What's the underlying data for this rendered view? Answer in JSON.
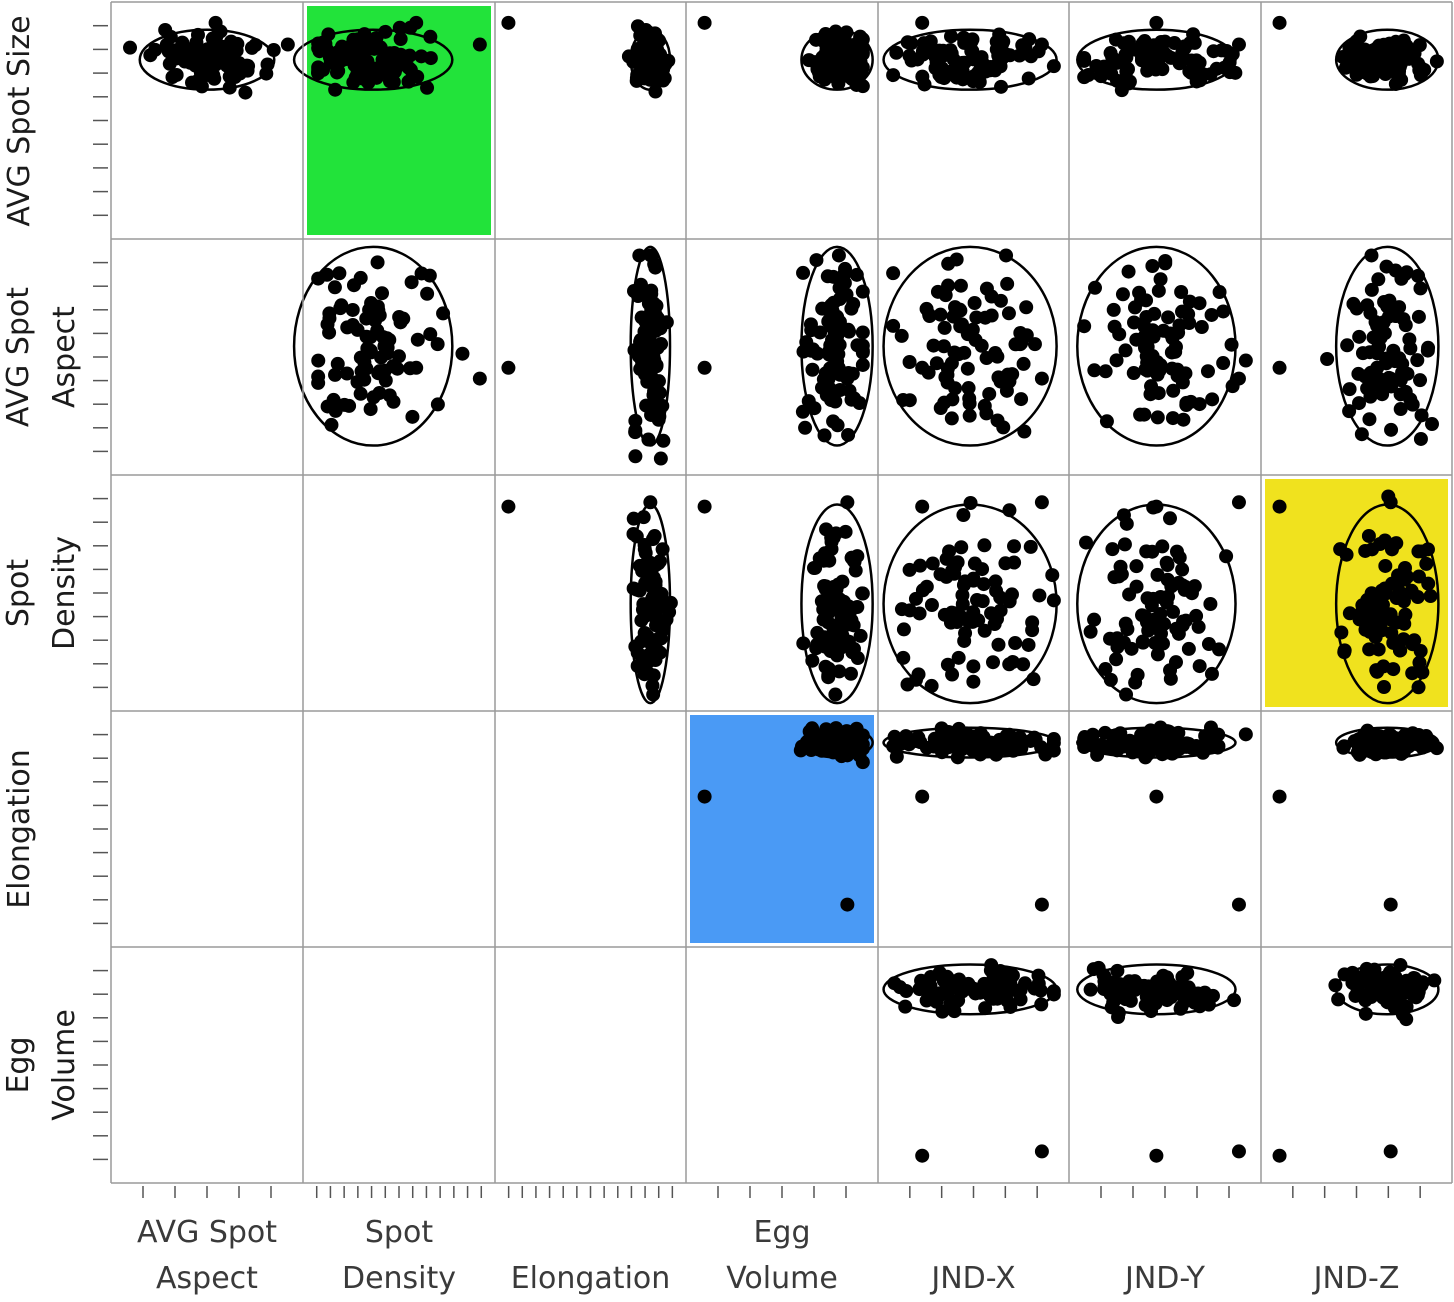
{
  "chart_data": {
    "type": "scatter",
    "subtype": "scatterplot-matrix",
    "rows": [
      "AVG Spot Size",
      "AVG Spot Aspect",
      "Spot Density",
      "Elongation",
      "Egg Volume"
    ],
    "columns": [
      "AVG Spot Aspect",
      "Spot Density",
      "Elongation",
      "Egg Volume",
      "JND-X",
      "JND-Y",
      "JND-Z"
    ],
    "row_label_lines": [
      [
        "AVG Spot Size"
      ],
      [
        "AVG Spot",
        "Aspect"
      ],
      [
        "Spot",
        "Density"
      ],
      [
        "Elongation"
      ],
      [
        "Egg",
        "Volume"
      ]
    ],
    "column_label_lines": [
      [
        "AVG Spot",
        "Aspect"
      ],
      [
        "Spot",
        "Density"
      ],
      [
        "Elongation"
      ],
      [
        "Egg",
        "Volume"
      ],
      [
        "JND-X"
      ],
      [
        "JND-Y"
      ],
      [
        "JND-Z"
      ]
    ],
    "value_range": [
      0,
      1
    ],
    "density_ellipses": true,
    "grid": false,
    "highlighted_cells": [
      {
        "row": 0,
        "col": 1,
        "color": "#22e33a"
      },
      {
        "row": 2,
        "col": 6,
        "color": "#f0e21e"
      },
      {
        "row": 3,
        "col": 3,
        "color": "#4a9af5"
      }
    ],
    "point_color": "#000000"
  }
}
